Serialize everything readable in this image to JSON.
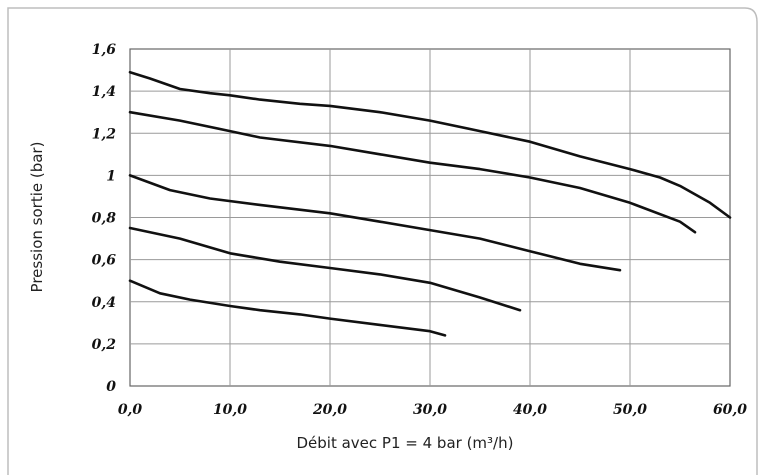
{
  "chart_data": {
    "type": "line",
    "title": "",
    "xlabel": "Débit avec P1 = 4 bar (m³/h)",
    "ylabel": "Pression sortie (bar)",
    "xlim": [
      0,
      60
    ],
    "ylim": [
      0,
      1.6
    ],
    "x_ticks": [
      0,
      10,
      20,
      30,
      40,
      50,
      60
    ],
    "x_tick_labels": [
      "0,0",
      "10,0",
      "20,0",
      "30,0",
      "40,0",
      "50,0",
      "60,0"
    ],
    "y_ticks": [
      0,
      0.2,
      0.4,
      0.6,
      0.8,
      1,
      1.2,
      1.4,
      1.6
    ],
    "y_tick_labels": [
      "0",
      "0,2",
      "0,4",
      "0,6",
      "0,8",
      "1",
      "1,2",
      "1,4",
      "1,6"
    ],
    "grid": true,
    "legend": "none",
    "series": [
      {
        "x": [
          0,
          2,
          5,
          8,
          10,
          13,
          17,
          20,
          25,
          30,
          35,
          40,
          45,
          50,
          53,
          55,
          58,
          60
        ],
        "y": [
          1.49,
          1.46,
          1.41,
          1.39,
          1.38,
          1.36,
          1.34,
          1.33,
          1.3,
          1.26,
          1.21,
          1.16,
          1.09,
          1.03,
          0.99,
          0.95,
          0.87,
          0.8
        ]
      },
      {
        "x": [
          0,
          5,
          10,
          13,
          20,
          25,
          30,
          35,
          40,
          45,
          50,
          55,
          56.5
        ],
        "y": [
          1.3,
          1.26,
          1.21,
          1.18,
          1.14,
          1.1,
          1.06,
          1.03,
          0.99,
          0.94,
          0.87,
          0.78,
          0.73
        ]
      },
      {
        "x": [
          0,
          4,
          8,
          13,
          20,
          25,
          30,
          35,
          40,
          45,
          49
        ],
        "y": [
          1.0,
          0.93,
          0.89,
          0.86,
          0.82,
          0.78,
          0.74,
          0.7,
          0.64,
          0.58,
          0.55
        ]
      },
      {
        "x": [
          0,
          5,
          10,
          15,
          20,
          25,
          30,
          35,
          39
        ],
        "y": [
          0.75,
          0.7,
          0.63,
          0.59,
          0.56,
          0.53,
          0.49,
          0.42,
          0.36
        ]
      },
      {
        "x": [
          0,
          3,
          6,
          10,
          13,
          17,
          20,
          25,
          30,
          31.5
        ],
        "y": [
          0.5,
          0.44,
          0.41,
          0.38,
          0.36,
          0.34,
          0.32,
          0.29,
          0.26,
          0.24
        ]
      }
    ]
  }
}
